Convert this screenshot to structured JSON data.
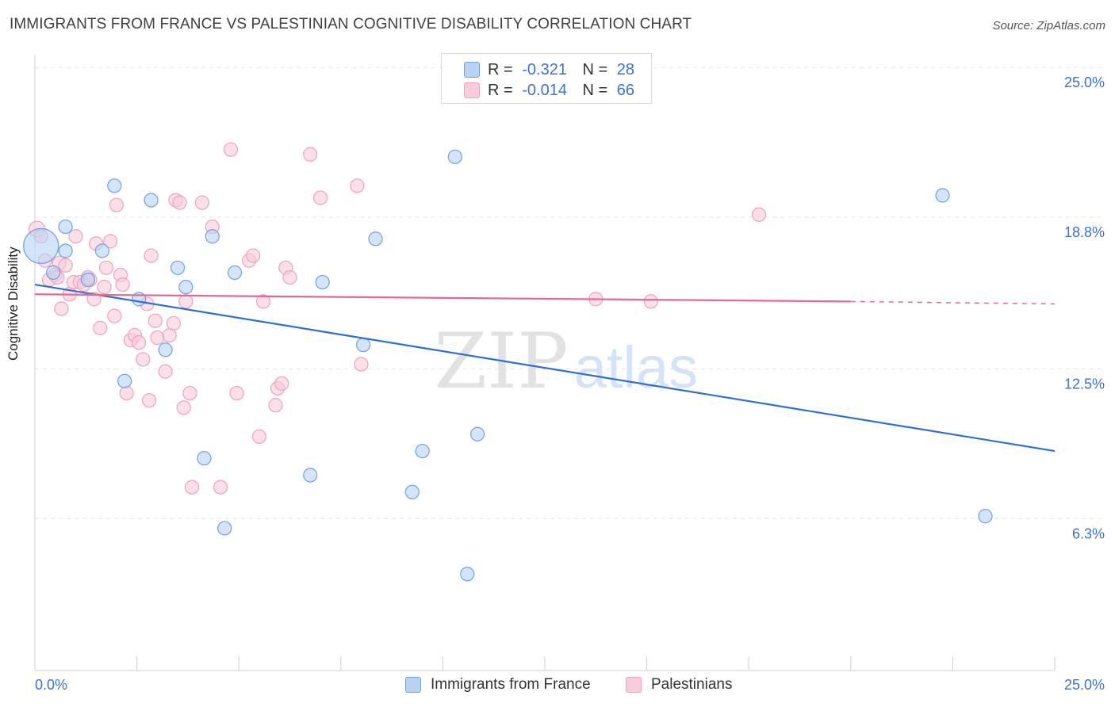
{
  "header": {
    "title": "IMMIGRANTS FROM FRANCE VS PALESTINIAN COGNITIVE DISABILITY CORRELATION CHART",
    "source": "Source: ZipAtlas.com"
  },
  "legend_top": {
    "rows": [
      {
        "r_label": "R =",
        "r_value": "-0.321",
        "n_label": "N =",
        "n_value": "28"
      },
      {
        "r_label": "R =",
        "r_value": "-0.014",
        "n_label": "N =",
        "n_value": "66"
      }
    ]
  },
  "watermark": {
    "part1": "ZIP",
    "part2": "atlas"
  },
  "chart_data": {
    "type": "scatter",
    "title": "IMMIGRANTS FROM FRANCE VS PALESTINIAN COGNITIVE DISABILITY CORRELATION CHART",
    "xlabel": "",
    "ylabel": "Cognitive Disability",
    "xlim": [
      0,
      25
    ],
    "ylim": [
      0,
      25.5
    ],
    "x_tick_labels": [
      "0.0%",
      "25.0%"
    ],
    "y_ticks": [
      6.3,
      12.5,
      18.8,
      25.0
    ],
    "y_tick_labels": [
      "6.3%",
      "12.5%",
      "18.8%",
      "25.0%"
    ],
    "grid": true,
    "legend_position": "bottom",
    "series": [
      {
        "name": "Immigrants from France",
        "color": "#6fa0e6",
        "fill": "#b9d3f5",
        "line_color": "#2f6fd0",
        "trend": {
          "x": [
            0,
            25
          ],
          "y": [
            16.0,
            9.1
          ]
        },
        "points": [
          [
            0.15,
            17.6
          ],
          [
            0.45,
            16.5
          ],
          [
            0.75,
            18.4
          ],
          [
            0.75,
            17.4
          ],
          [
            1.3,
            16.2
          ],
          [
            1.65,
            17.4
          ],
          [
            1.95,
            20.1
          ],
          [
            2.2,
            12.0
          ],
          [
            2.55,
            15.4
          ],
          [
            2.85,
            19.5
          ],
          [
            3.2,
            13.3
          ],
          [
            3.5,
            16.7
          ],
          [
            3.7,
            15.9
          ],
          [
            4.15,
            8.8
          ],
          [
            4.35,
            18.0
          ],
          [
            4.65,
            5.9
          ],
          [
            4.9,
            16.5
          ],
          [
            6.75,
            8.1
          ],
          [
            7.05,
            16.1
          ],
          [
            8.05,
            13.5
          ],
          [
            8.35,
            17.9
          ],
          [
            9.25,
            7.4
          ],
          [
            9.5,
            9.1
          ],
          [
            10.3,
            21.3
          ],
          [
            10.6,
            4.0
          ],
          [
            10.85,
            9.8
          ],
          [
            22.25,
            19.7
          ],
          [
            23.3,
            6.4
          ]
        ]
      },
      {
        "name": "Palestinians",
        "color": "#f0a1bb",
        "fill": "#f9ccda",
        "line_color": "#e46a93",
        "trend": {
          "x": [
            0,
            20
          ],
          "y": [
            15.6,
            15.3
          ]
        },
        "trend_dashed": {
          "x": [
            20,
            25
          ],
          "y": [
            15.3,
            15.2
          ]
        },
        "points": [
          [
            0.05,
            18.3
          ],
          [
            0.15,
            18.0
          ],
          [
            0.25,
            17.0
          ],
          [
            0.35,
            16.2
          ],
          [
            0.5,
            16.4
          ],
          [
            0.55,
            16.3
          ],
          [
            0.6,
            16.9
          ],
          [
            0.65,
            15.0
          ],
          [
            0.75,
            16.8
          ],
          [
            0.85,
            15.6
          ],
          [
            0.95,
            16.1
          ],
          [
            1.0,
            18.0
          ],
          [
            1.1,
            16.1
          ],
          [
            1.2,
            16.0
          ],
          [
            1.3,
            16.3
          ],
          [
            1.35,
            16.2
          ],
          [
            1.45,
            15.4
          ],
          [
            1.5,
            17.7
          ],
          [
            1.6,
            14.2
          ],
          [
            1.7,
            15.9
          ],
          [
            1.75,
            16.7
          ],
          [
            1.85,
            17.8
          ],
          [
            1.95,
            14.7
          ],
          [
            2.0,
            19.3
          ],
          [
            2.1,
            16.4
          ],
          [
            2.15,
            16.0
          ],
          [
            2.25,
            11.5
          ],
          [
            2.35,
            13.7
          ],
          [
            2.45,
            13.9
          ],
          [
            2.55,
            13.6
          ],
          [
            2.65,
            12.9
          ],
          [
            2.75,
            15.2
          ],
          [
            2.8,
            11.2
          ],
          [
            2.85,
            17.2
          ],
          [
            2.95,
            14.5
          ],
          [
            3.0,
            13.8
          ],
          [
            3.2,
            12.4
          ],
          [
            3.3,
            13.9
          ],
          [
            3.4,
            14.4
          ],
          [
            3.45,
            19.5
          ],
          [
            3.55,
            19.4
          ],
          [
            3.65,
            10.9
          ],
          [
            3.7,
            15.3
          ],
          [
            3.8,
            11.5
          ],
          [
            3.85,
            7.6
          ],
          [
            4.1,
            19.4
          ],
          [
            4.35,
            18.4
          ],
          [
            4.55,
            7.6
          ],
          [
            4.8,
            21.6
          ],
          [
            4.95,
            11.5
          ],
          [
            5.25,
            17.0
          ],
          [
            5.35,
            17.2
          ],
          [
            5.5,
            9.7
          ],
          [
            5.6,
            15.3
          ],
          [
            5.9,
            11.0
          ],
          [
            5.95,
            11.7
          ],
          [
            6.05,
            11.9
          ],
          [
            6.15,
            16.7
          ],
          [
            6.25,
            16.3
          ],
          [
            6.75,
            21.4
          ],
          [
            7.0,
            19.6
          ],
          [
            7.9,
            20.1
          ],
          [
            8.0,
            12.7
          ],
          [
            13.75,
            15.4
          ],
          [
            15.1,
            15.3
          ],
          [
            17.75,
            18.9
          ]
        ]
      }
    ]
  },
  "bottom_legend": {
    "items": [
      {
        "label": "Immigrants from France"
      },
      {
        "label": "Palestinians"
      }
    ]
  }
}
